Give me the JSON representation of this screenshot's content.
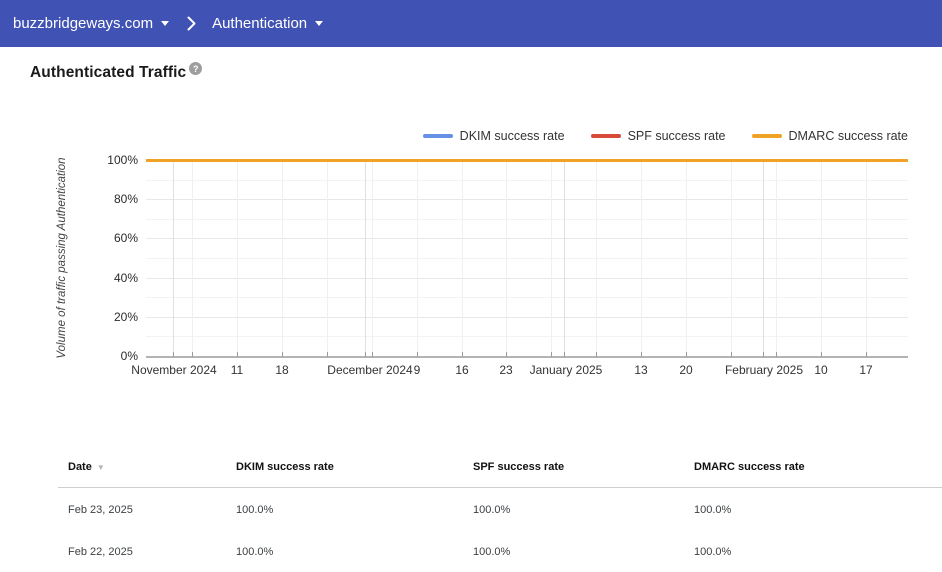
{
  "header": {
    "domain_selector": "buzzbridgeways.com",
    "section_selector": "Authentication"
  },
  "page": {
    "title": "Authenticated Traffic"
  },
  "colors": {
    "topbar": "#4052b4",
    "dkim": "#6590e6",
    "spf": "#d84a38",
    "dmarc": "#f0a224"
  },
  "chart_data": {
    "type": "line",
    "title": "",
    "xlabel": "",
    "ylabel": "Volume of traffic passing Authentication",
    "ylim": [
      0,
      100
    ],
    "x_range": [
      "November 2024",
      "February 2025"
    ],
    "grid_on": true,
    "legend_position": "top-right",
    "y_ticks": [
      {
        "label": "100%",
        "value": 100
      },
      {
        "label": "80%",
        "value": 80
      },
      {
        "label": "60%",
        "value": 60
      },
      {
        "label": "40%",
        "value": 40
      },
      {
        "label": "20%",
        "value": 20
      },
      {
        "label": "0%",
        "value": 0
      }
    ],
    "x_ticks": [
      {
        "label": "November 2024",
        "x": 28
      },
      {
        "label": "11",
        "x": 91
      },
      {
        "label": "18",
        "x": 136
      },
      {
        "label": "December 2024",
        "x": 224
      },
      {
        "label": "9",
        "x": 271
      },
      {
        "label": "16",
        "x": 316
      },
      {
        "label": "23",
        "x": 360
      },
      {
        "label": "January 2025",
        "x": 420
      },
      {
        "label": "13",
        "x": 495
      },
      {
        "label": "20",
        "x": 540
      },
      {
        "label": "February 2025",
        "x": 618
      },
      {
        "label": "10",
        "x": 675
      },
      {
        "label": "17",
        "x": 720
      }
    ],
    "grid": {
      "week_lines_x": [
        46,
        91,
        136,
        181,
        226,
        271,
        316,
        360,
        405,
        450,
        495,
        540,
        585,
        630,
        675,
        720
      ],
      "month_lines_x": [
        27,
        219,
        418,
        617
      ]
    },
    "series": [
      {
        "name": "DKIM success rate",
        "color": "#6590e6",
        "value_percent": 100,
        "shape": "flat line at 100% across entire date range"
      },
      {
        "name": "SPF success rate",
        "color": "#d84a38",
        "value_percent": 100,
        "shape": "flat line at 100% across entire date range"
      },
      {
        "name": "DMARC success rate",
        "color": "#f0a224",
        "value_percent": 100,
        "shape": "flat line at 100% across entire date range"
      }
    ]
  },
  "table": {
    "columns": [
      {
        "label": "Date",
        "sortable": true,
        "sort_icon": "▼"
      },
      {
        "label": "DKIM success rate",
        "sortable": false
      },
      {
        "label": "SPF success rate",
        "sortable": false
      },
      {
        "label": "DMARC success rate",
        "sortable": false
      }
    ],
    "rows": [
      [
        "Feb 23, 2025",
        "100.0%",
        "100.0%",
        "100.0%"
      ],
      [
        "Feb 22, 2025",
        "100.0%",
        "100.0%",
        "100.0%"
      ]
    ]
  }
}
